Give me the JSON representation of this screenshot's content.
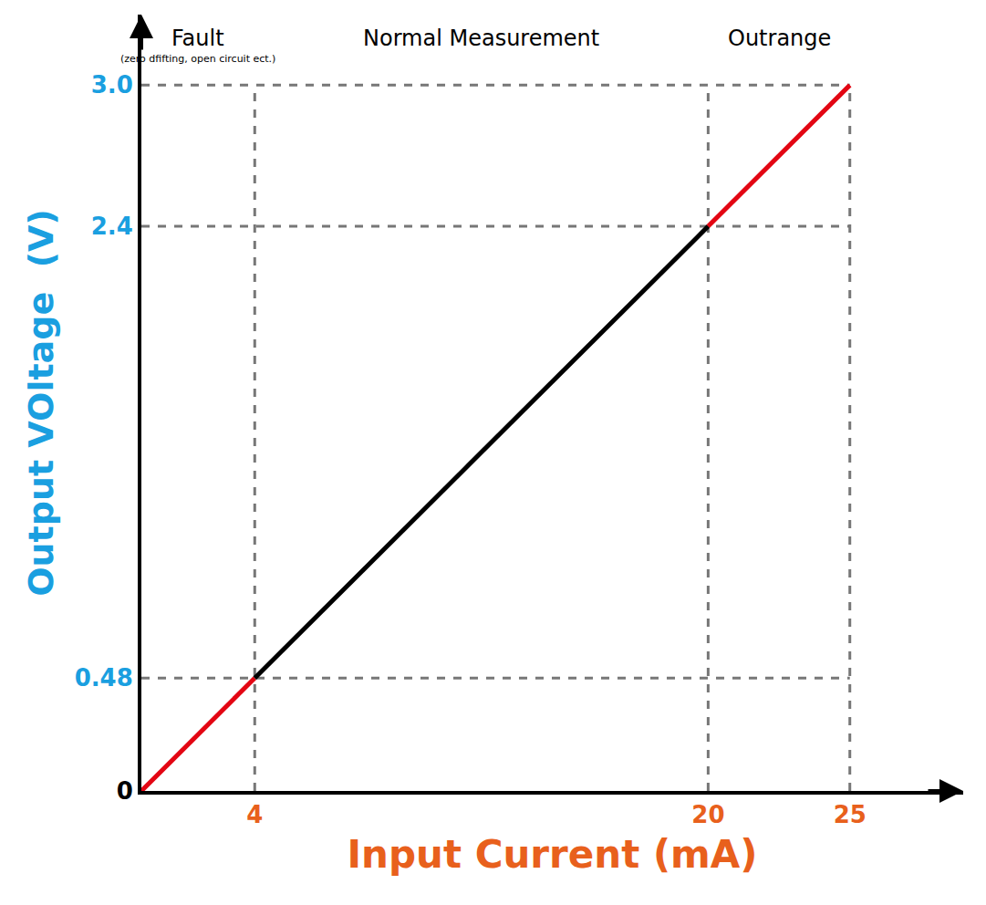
{
  "chart_data": {
    "type": "line",
    "x_label": "Input Current (mA)",
    "y_label": "Output VOltage  (V)",
    "x": [
      0,
      4,
      20,
      25
    ],
    "values": [
      0,
      0.48,
      2.4,
      3.0
    ],
    "xlim": [
      0,
      29
    ],
    "ylim": [
      0,
      3.3
    ],
    "xticks": [
      4,
      20,
      25
    ],
    "yticks": [
      0,
      0.48,
      2.4,
      {
        "value": 3,
        "label": "3.0"
      }
    ],
    "grid": true,
    "regions": [
      {
        "label": "Fault",
        "note": "(zero dfifting, open circuit ect.)",
        "from": 0,
        "to": 4,
        "color": "#e30613"
      },
      {
        "label": "Normal Measurement",
        "from": 4,
        "to": 20,
        "color": "#000000"
      },
      {
        "label": "Outrange",
        "from": 20,
        "to": 25,
        "color": "#e30613"
      }
    ]
  }
}
